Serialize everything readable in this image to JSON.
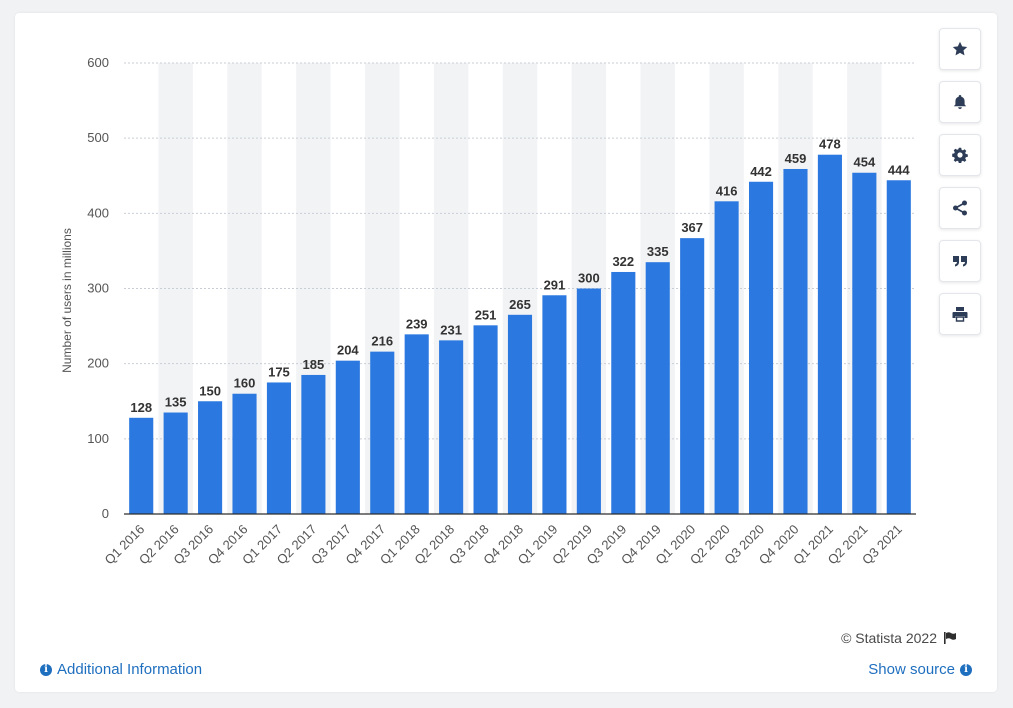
{
  "chart_data": {
    "type": "bar",
    "ylabel": "Number of users in millions",
    "xlabel": "",
    "title": "",
    "ylim": [
      0,
      600
    ],
    "yticks": [
      0,
      100,
      200,
      300,
      400,
      500,
      600
    ],
    "categories": [
      "Q1 2016",
      "Q2 2016",
      "Q3 2016",
      "Q4 2016",
      "Q1 2017",
      "Q2 2017",
      "Q3 2017",
      "Q4 2017",
      "Q1 2018",
      "Q2 2018",
      "Q3 2018",
      "Q4 2018",
      "Q1 2019",
      "Q2 2019",
      "Q3 2019",
      "Q4 2019",
      "Q1 2020",
      "Q2 2020",
      "Q3 2020",
      "Q4 2020",
      "Q1 2021",
      "Q2 2021",
      "Q3 2021"
    ],
    "values": [
      128,
      135,
      150,
      160,
      175,
      185,
      204,
      216,
      239,
      231,
      251,
      265,
      291,
      300,
      322,
      335,
      367,
      416,
      442,
      459,
      478,
      454,
      444
    ],
    "bar_color": "#2b78e0",
    "grid": true,
    "legend": "none"
  },
  "sidebar": {
    "buttons": [
      {
        "name": "star-icon"
      },
      {
        "name": "bell-icon"
      },
      {
        "name": "gear-icon"
      },
      {
        "name": "share-icon"
      },
      {
        "name": "quote-icon"
      },
      {
        "name": "print-icon"
      }
    ]
  },
  "footer": {
    "credit": "© Statista 2022",
    "additional_info": "Additional Information",
    "show_source": "Show source"
  },
  "colors": {
    "accent": "#1f6fbf",
    "bar": "#2b78e0",
    "band": "#f2f3f5"
  }
}
